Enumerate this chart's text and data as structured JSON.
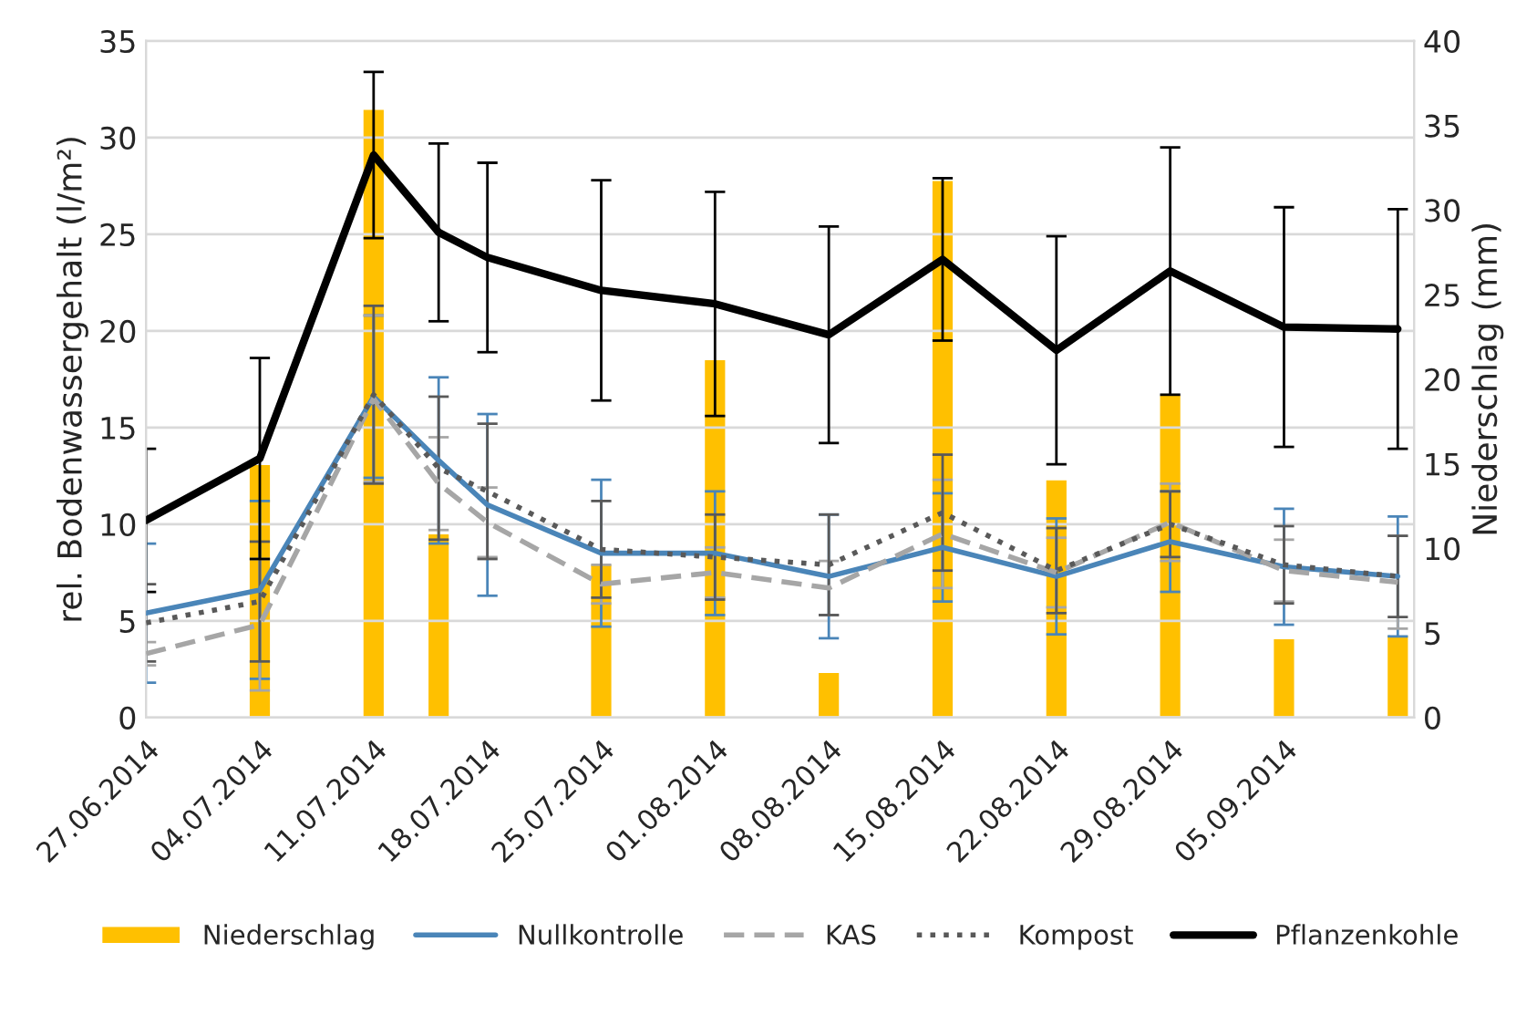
{
  "chart_data": {
    "type": "line",
    "ylabel": "rel. Bodenwassergehalt (l/m²)",
    "y2label": "Niederschlag (mm)",
    "x": [
      "2014-06-27",
      "2014-07-04",
      "2014-07-11",
      "2014-07-15",
      "2014-07-18",
      "2014-07-25",
      "2014-08-01",
      "2014-08-08",
      "2014-08-15",
      "2014-08-22",
      "2014-08-29",
      "2014-09-05",
      "2014-09-12"
    ],
    "xlim": [
      "2014-06-27",
      "2014-09-13"
    ],
    "xticks": [
      {
        "value": "2014-06-27",
        "label": "27.06.2014"
      },
      {
        "value": "2014-07-04",
        "label": "04.07.2014"
      },
      {
        "value": "2014-07-11",
        "label": "11.07.2014"
      },
      {
        "value": "2014-07-18",
        "label": "18.07.2014"
      },
      {
        "value": "2014-07-25",
        "label": "25.07.2014"
      },
      {
        "value": "2014-08-01",
        "label": "01.08.2014"
      },
      {
        "value": "2014-08-08",
        "label": "08.08.2014"
      },
      {
        "value": "2014-08-15",
        "label": "15.08.2014"
      },
      {
        "value": "2014-08-22",
        "label": "22.08.2014"
      },
      {
        "value": "2014-08-29",
        "label": "29.08.2014"
      },
      {
        "value": "2014-09-05",
        "label": "05.09.2014"
      }
    ],
    "ylim": [
      0,
      35
    ],
    "yticks": [
      0,
      5,
      10,
      15,
      20,
      25,
      30,
      35
    ],
    "y2lim": [
      0,
      40
    ],
    "y2ticks": [
      0,
      5,
      10,
      15,
      20,
      25,
      30,
      35,
      40
    ],
    "grid": "y",
    "legend": "bottom",
    "series": [
      {
        "name": "Niederschlag",
        "type": "bar",
        "axis": "y2",
        "color": "#ffc000",
        "x": [
          "2014-07-04",
          "2014-07-11",
          "2014-07-15",
          "2014-07-25",
          "2014-08-01",
          "2014-08-08",
          "2014-08-15",
          "2014-08-22",
          "2014-08-29",
          "2014-09-05",
          "2014-09-12"
        ],
        "values": [
          15.0,
          36.0,
          10.9,
          9.1,
          21.2,
          2.7,
          31.8,
          14.1,
          19.1,
          4.7,
          4.9
        ]
      },
      {
        "name": "Nullkontrolle",
        "line_style": "solid",
        "color": "#4a85b8",
        "values": [
          5.4,
          6.6,
          16.6,
          13.3,
          11.0,
          8.5,
          8.5,
          7.3,
          8.8,
          7.3,
          9.1,
          7.8,
          7.3
        ],
        "errors": [
          3.6,
          4.6,
          4.2,
          4.3,
          4.7,
          3.8,
          3.2,
          3.2,
          2.8,
          3.0,
          2.6,
          3.0,
          3.1
        ]
      },
      {
        "name": "KAS",
        "line_style": "dashed",
        "color": "#a6a6a6",
        "values": [
          3.3,
          4.8,
          16.5,
          12.1,
          10.1,
          6.9,
          7.5,
          6.7,
          9.5,
          7.5,
          10.1,
          7.6,
          7.0
        ],
        "errors": [
          0.6,
          3.4,
          4.3,
          2.4,
          1.8,
          1.0,
          1.3,
          1.4,
          2.8,
          1.8,
          2.0,
          1.6,
          2.4
        ]
      },
      {
        "name": "Kompost",
        "line_style": "dotted",
        "color": "#595959",
        "values": [
          4.9,
          6.0,
          16.7,
          12.9,
          11.7,
          8.7,
          8.3,
          7.9,
          10.6,
          7.6,
          10.0,
          7.9,
          7.3
        ],
        "errors": [
          2.0,
          3.1,
          4.6,
          3.7,
          3.5,
          2.5,
          2.2,
          2.6,
          3.0,
          2.2,
          1.7,
          2.0,
          2.1
        ]
      },
      {
        "name": "Pflanzenkohle",
        "line_style": "solid",
        "color": "#000000",
        "values": [
          10.2,
          13.4,
          29.1,
          25.1,
          23.8,
          22.1,
          21.4,
          19.8,
          23.7,
          19.0,
          23.1,
          20.2,
          20.1
        ],
        "errors": [
          3.7,
          5.2,
          4.3,
          4.6,
          4.9,
          5.7,
          5.8,
          5.6,
          4.2,
          5.9,
          6.4,
          6.2,
          6.2
        ]
      }
    ]
  }
}
